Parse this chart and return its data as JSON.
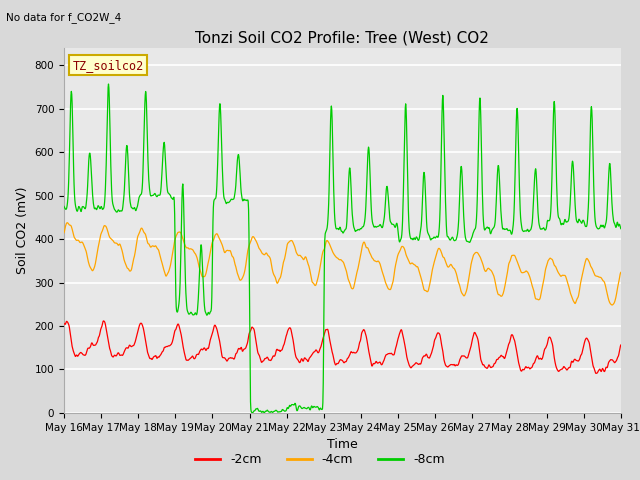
{
  "title": "Tonzi Soil CO2 Profile: Tree (West) CO2",
  "no_data_text": "No data for f_CO2W_4",
  "ylabel": "Soil CO2 (mV)",
  "xlabel": "Time",
  "box_label": "TZ_soilco2",
  "legend_labels": [
    "-2cm",
    "-4cm",
    "-8cm"
  ],
  "legend_colors": [
    "#ff0000",
    "#ffa500",
    "#00cc00"
  ],
  "ylim": [
    0,
    840
  ],
  "yticks": [
    0,
    100,
    200,
    300,
    400,
    500,
    600,
    700,
    800
  ],
  "xtick_labels": [
    "May 16",
    "May 17",
    "May 18",
    "May 19",
    "May 20",
    "May 21",
    "May 22",
    "May 23",
    "May 24",
    "May 25",
    "May 26",
    "May 27",
    "May 28",
    "May 29",
    "May 30",
    "May 31"
  ],
  "bg_color": "#d9d9d9",
  "plot_bg_color": "#e8e8e8",
  "grid_color": "#ffffff",
  "title_fontsize": 11,
  "label_fontsize": 9,
  "tick_fontsize": 7.5
}
